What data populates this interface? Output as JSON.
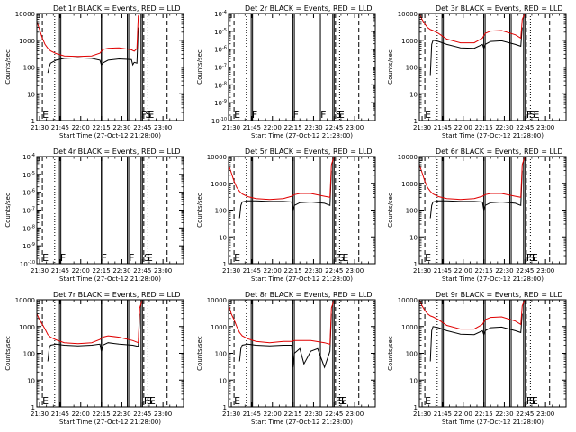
{
  "figure": {
    "xlabel": "Start Time (27-Oct-12 21:28:00)",
    "ylabel": "Counts/sec",
    "xticks": [
      "21:30",
      "21:45",
      "22:00",
      "22:15",
      "22:30",
      "22:45",
      "23:00"
    ],
    "colors": {
      "axes": "#000000",
      "events": "#000000",
      "lld": "#e00000",
      "background": "#ffffff"
    }
  },
  "chart_data": [
    {
      "type": "line",
      "title": "Det 1r BLACK = Events, RED = LLD",
      "xlabel": "Start Time (27-Oct-12 21:28:00)",
      "ylabel": "Counts/sec",
      "x_unit": "minutes after 21:28",
      "xlim": [
        0,
        107
      ],
      "ylim": [
        1,
        10000
      ],
      "yscale": "log",
      "yticks": [
        "1",
        "10",
        "100",
        "1000",
        "10000"
      ],
      "markers": [
        {
          "label": "E",
          "x": 4
        },
        {
          "label": "F",
          "x": 76
        },
        {
          "label": "S",
          "x": 79
        },
        {
          "label": "E",
          "x": 81
        }
      ],
      "series": [
        {
          "name": "Events",
          "color": "#000000",
          "x": [
            8,
            9,
            10,
            14,
            20,
            30,
            40,
            46,
            47,
            48,
            52,
            60,
            69,
            70,
            71,
            73,
            74
          ],
          "y": [
            60,
            100,
            140,
            180,
            210,
            220,
            210,
            180,
            120,
            140,
            180,
            200,
            190,
            120,
            150,
            140,
            3000
          ]
        },
        {
          "name": "LLD",
          "color": "#e00000",
          "x": [
            0,
            2,
            4,
            6,
            8,
            10,
            14,
            20,
            30,
            40,
            46,
            48,
            52,
            60,
            69,
            71,
            73,
            74,
            75
          ],
          "y": [
            5000,
            2500,
            1200,
            700,
            500,
            400,
            320,
            260,
            250,
            260,
            330,
            450,
            500,
            520,
            440,
            390,
            480,
            8000,
            10000
          ]
        }
      ]
    },
    {
      "type": "line",
      "title": "Det 2r BLACK = Events, RED = LLD",
      "xlabel": "Start Time (27-Oct-12 21:28:00)",
      "ylabel": "Counts/sec",
      "x_unit": "minutes after 21:28",
      "xlim": [
        0,
        107
      ],
      "ylim": [
        1e-10,
        0.0001
      ],
      "yscale": "log",
      "yticks": [
        "10^-10",
        "10^-9",
        "10^-8",
        "10^-7",
        "10^-6",
        "10^-5",
        "10^-4"
      ],
      "markers": [
        {
          "label": "E",
          "x": 4
        },
        {
          "label": "F",
          "x": 17
        },
        {
          "label": "F",
          "x": 47
        },
        {
          "label": "F",
          "x": 67
        },
        {
          "label": "S",
          "x": 78
        },
        {
          "label": "E",
          "x": 80
        }
      ],
      "series": []
    },
    {
      "type": "line",
      "title": "Det 3r BLACK = Events, RED = LLD",
      "xlabel": "Start Time (27-Oct-12 21:28:00)",
      "ylabel": "Counts/sec",
      "x_unit": "minutes after 21:28",
      "xlim": [
        0,
        107
      ],
      "ylim": [
        1,
        10000
      ],
      "yscale": "log",
      "yticks": [
        "1",
        "10",
        "100",
        "1000",
        "10000"
      ],
      "markers": [
        {
          "label": "E",
          "x": 4
        },
        {
          "label": "F",
          "x": 78
        },
        {
          "label": "S",
          "x": 80
        },
        {
          "label": "E",
          "x": 83
        }
      ],
      "series": [
        {
          "name": "Events",
          "color": "#000000",
          "x": [
            8,
            9,
            10,
            14,
            20,
            30,
            40,
            46,
            47,
            48,
            52,
            60,
            70,
            74,
            75
          ],
          "y": [
            50,
            700,
            1000,
            900,
            700,
            520,
            500,
            700,
            500,
            700,
            900,
            950,
            700,
            600,
            3000
          ]
        },
        {
          "name": "LLD",
          "color": "#e00000",
          "x": [
            0,
            2,
            4,
            6,
            8,
            10,
            14,
            20,
            30,
            40,
            46,
            48,
            52,
            60,
            70,
            74,
            75,
            77
          ],
          "y": [
            10000,
            6000,
            4000,
            3000,
            2500,
            2300,
            1800,
            1100,
            800,
            800,
            1200,
            1800,
            2200,
            2300,
            1600,
            1200,
            6000,
            10000
          ]
        }
      ]
    },
    {
      "type": "line",
      "title": "Det 4r BLACK = Events, RED = LLD",
      "xlabel": "Start Time (27-Oct-12 21:28:00)",
      "ylabel": "Counts/sec",
      "x_unit": "minutes after 21:28",
      "xlim": [
        0,
        107
      ],
      "ylim": [
        1e-10,
        0.0001
      ],
      "yscale": "log",
      "yticks": [
        "10^-10",
        "10^-9",
        "10^-8",
        "10^-7",
        "10^-6",
        "10^-5",
        "10^-4"
      ],
      "markers": [
        {
          "label": "E",
          "x": 4
        },
        {
          "label": "F",
          "x": 17
        },
        {
          "label": "F",
          "x": 47
        },
        {
          "label": "F",
          "x": 67
        },
        {
          "label": "S",
          "x": 78
        },
        {
          "label": "E",
          "x": 80
        }
      ],
      "series": []
    },
    {
      "type": "line",
      "title": "Det 5r BLACK = Events, RED = LLD",
      "xlabel": "Start Time (27-Oct-12 21:28:00)",
      "ylabel": "Counts/sec",
      "x_unit": "minutes after 21:28",
      "xlim": [
        0,
        107
      ],
      "ylim": [
        1,
        10000
      ],
      "yscale": "log",
      "yticks": [
        "1",
        "10",
        "100",
        "1000",
        "10000"
      ],
      "markers": [
        {
          "label": "E",
          "x": 4
        },
        {
          "label": "F",
          "x": 78
        },
        {
          "label": "S",
          "x": 80
        },
        {
          "label": "E",
          "x": 83
        }
      ],
      "series": [
        {
          "name": "Events",
          "color": "#000000",
          "x": [
            8,
            9,
            10,
            14,
            20,
            30,
            40,
            46,
            47,
            48,
            52,
            60,
            70,
            74,
            75
          ],
          "y": [
            50,
            150,
            200,
            220,
            220,
            210,
            210,
            200,
            100,
            150,
            190,
            200,
            180,
            150,
            3000
          ]
        },
        {
          "name": "LLD",
          "color": "#e00000",
          "x": [
            0,
            2,
            4,
            6,
            8,
            10,
            14,
            20,
            30,
            40,
            46,
            48,
            52,
            60,
            70,
            74,
            75,
            77
          ],
          "y": [
            5000,
            2500,
            1200,
            700,
            500,
            400,
            320,
            270,
            250,
            270,
            330,
            380,
            420,
            420,
            330,
            300,
            5000,
            10000
          ]
        }
      ]
    },
    {
      "type": "line",
      "title": "Det 6r BLACK = Events, RED = LLD",
      "xlabel": "Start Time (27-Oct-12 21:28:00)",
      "ylabel": "Counts/sec",
      "x_unit": "minutes after 21:28",
      "xlim": [
        0,
        107
      ],
      "ylim": [
        1,
        10000
      ],
      "yscale": "log",
      "yticks": [
        "1",
        "10",
        "100",
        "1000",
        "10000"
      ],
      "markers": [
        {
          "label": "E",
          "x": 4
        },
        {
          "label": "F",
          "x": 78
        },
        {
          "label": "S",
          "x": 80
        },
        {
          "label": "E",
          "x": 82
        }
      ],
      "series": [
        {
          "name": "Events",
          "color": "#000000",
          "x": [
            8,
            9,
            10,
            14,
            20,
            30,
            40,
            46,
            47,
            48,
            52,
            60,
            70,
            74,
            75
          ],
          "y": [
            50,
            150,
            200,
            220,
            220,
            210,
            210,
            200,
            100,
            150,
            190,
            200,
            180,
            150,
            3000
          ]
        },
        {
          "name": "LLD",
          "color": "#e00000",
          "x": [
            0,
            2,
            4,
            6,
            8,
            10,
            14,
            20,
            30,
            40,
            46,
            48,
            52,
            60,
            70,
            74,
            75,
            77
          ],
          "y": [
            5000,
            2500,
            1200,
            700,
            500,
            400,
            320,
            270,
            250,
            270,
            330,
            380,
            420,
            420,
            330,
            300,
            5000,
            10000
          ]
        }
      ]
    },
    {
      "type": "line",
      "title": "Det 7r BLACK = Events, RED = LLD",
      "xlabel": "Start Time (27-Oct-12 21:28:00)",
      "ylabel": "Counts/sec",
      "x_unit": "minutes after 21:28",
      "xlim": [
        0,
        107
      ],
      "ylim": [
        1,
        10000
      ],
      "yscale": "log",
      "yticks": [
        "1",
        "10",
        "100",
        "1000",
        "10000"
      ],
      "markers": [
        {
          "label": "E",
          "x": 4
        },
        {
          "label": "F",
          "x": 78
        },
        {
          "label": "S",
          "x": 80
        },
        {
          "label": "E",
          "x": 82
        }
      ],
      "series": [
        {
          "name": "Events",
          "color": "#000000",
          "x": [
            8,
            9,
            10,
            14,
            20,
            30,
            40,
            46,
            47,
            48,
            52,
            60,
            70,
            74,
            75
          ],
          "y": [
            50,
            150,
            200,
            220,
            200,
            190,
            200,
            220,
            120,
            200,
            250,
            220,
            200,
            180,
            3000
          ]
        },
        {
          "name": "LLD",
          "color": "#e00000",
          "x": [
            0,
            2,
            4,
            6,
            8,
            10,
            14,
            20,
            30,
            40,
            46,
            48,
            52,
            60,
            70,
            74,
            75,
            77
          ],
          "y": [
            3000,
            1800,
            1200,
            800,
            500,
            400,
            320,
            250,
            230,
            250,
            330,
            400,
            450,
            400,
            300,
            250,
            5000,
            10000
          ]
        }
      ]
    },
    {
      "type": "line",
      "title": "Det 8r BLACK = Events, RED = LLD",
      "xlabel": "Start Time (27-Oct-12 21:28:00)",
      "ylabel": "Counts/sec",
      "x_unit": "minutes after 21:28",
      "xlim": [
        0,
        107
      ],
      "ylim": [
        1,
        10000
      ],
      "yscale": "log",
      "yticks": [
        "1",
        "10",
        "100",
        "1000",
        "10000"
      ],
      "markers": [
        {
          "label": "E",
          "x": 4
        },
        {
          "label": "F",
          "x": 78
        },
        {
          "label": "S",
          "x": 80
        },
        {
          "label": "E",
          "x": 82
        }
      ],
      "series": [
        {
          "name": "Events",
          "color": "#000000",
          "x": [
            8,
            9,
            10,
            14,
            20,
            30,
            40,
            46,
            47,
            48,
            52,
            55,
            60,
            65,
            70,
            74,
            75
          ],
          "y": [
            50,
            150,
            200,
            220,
            200,
            190,
            200,
            200,
            30,
            100,
            150,
            40,
            120,
            150,
            30,
            120,
            3000
          ]
        },
        {
          "name": "LLD",
          "color": "#e00000",
          "x": [
            0,
            2,
            4,
            6,
            8,
            10,
            14,
            20,
            30,
            40,
            46,
            48,
            52,
            60,
            70,
            74,
            75,
            77
          ],
          "y": [
            7000,
            3000,
            1800,
            1000,
            600,
            450,
            350,
            280,
            250,
            280,
            280,
            300,
            300,
            300,
            250,
            220,
            5000,
            10000
          ]
        }
      ]
    },
    {
      "type": "line",
      "title": "Det 9r BLACK = Events, RED = LLD",
      "xlabel": "Start Time (27-Oct-12 21:28:00)",
      "ylabel": "Counts/sec",
      "x_unit": "minutes after 21:28",
      "xlim": [
        0,
        107
      ],
      "ylim": [
        1,
        10000
      ],
      "yscale": "log",
      "yticks": [
        "1",
        "10",
        "100",
        "1000",
        "10000"
      ],
      "markers": [
        {
          "label": "E",
          "x": 4
        },
        {
          "label": "F",
          "x": 78
        },
        {
          "label": "S",
          "x": 80
        },
        {
          "label": "E",
          "x": 82
        }
      ],
      "series": [
        {
          "name": "Events",
          "color": "#000000",
          "x": [
            8,
            9,
            10,
            14,
            20,
            30,
            40,
            46,
            47,
            48,
            52,
            60,
            70,
            74,
            75
          ],
          "y": [
            50,
            700,
            1000,
            900,
            700,
            520,
            500,
            700,
            500,
            700,
            900,
            950,
            700,
            600,
            3000
          ]
        },
        {
          "name": "LLD",
          "color": "#e00000",
          "x": [
            0,
            2,
            4,
            6,
            8,
            10,
            14,
            20,
            30,
            40,
            46,
            48,
            52,
            60,
            70,
            74,
            75,
            77
          ],
          "y": [
            10000,
            6000,
            4000,
            3000,
            2500,
            2300,
            1800,
            1100,
            800,
            800,
            1200,
            1800,
            2200,
            2300,
            1600,
            1200,
            6000,
            10000
          ]
        }
      ]
    }
  ]
}
